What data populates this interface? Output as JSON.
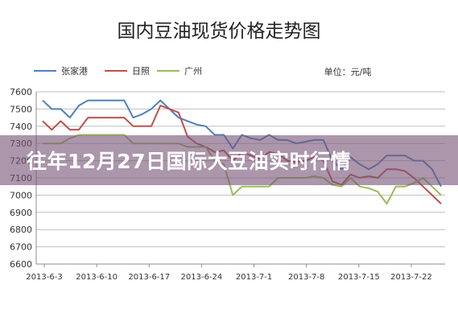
{
  "chart_data": {
    "type": "line",
    "title": "国内豆油现货价格走势图",
    "unit_label": "单位：元/吨",
    "xlabel": "",
    "ylabel": "",
    "ylim": [
      6600,
      7600
    ],
    "y_ticks": [
      6600,
      6700,
      6800,
      6900,
      7000,
      7100,
      7200,
      7300,
      7400,
      7500,
      7600
    ],
    "x_tick_labels": [
      "2013-6-3",
      "2013-6-10",
      "2013-6-17",
      "2013-6-24",
      "2013-7-1",
      "2013-7-8",
      "2013-7-15",
      "2013-7-22"
    ],
    "grid": true,
    "legend_position": "top-left",
    "series": [
      {
        "name": "张家港",
        "color": "#4f81bd",
        "values": [
          7550,
          7500,
          7500,
          7450,
          7520,
          7550,
          7550,
          7550,
          7550,
          7550,
          7450,
          7470,
          7500,
          7550,
          7500,
          7450,
          7430,
          7410,
          7400,
          7350,
          7350,
          7270,
          7350,
          7330,
          7320,
          7350,
          7320,
          7320,
          7300,
          7310,
          7320,
          7320,
          7200,
          7150,
          7220,
          7180,
          7150,
          7180,
          7230,
          7230,
          7230,
          7200,
          7200,
          7150,
          7050
        ]
      },
      {
        "name": "日照",
        "color": "#c0504d",
        "values": [
          7430,
          7380,
          7430,
          7380,
          7380,
          7450,
          7450,
          7450,
          7450,
          7450,
          7400,
          7400,
          7400,
          7520,
          7500,
          7480,
          7340,
          7300,
          7280,
          7250,
          7260,
          7200,
          7250,
          7230,
          7210,
          7250,
          7240,
          7200,
          7190,
          7200,
          7220,
          7200,
          7080,
          7060,
          7120,
          7100,
          7110,
          7100,
          7150,
          7150,
          7140,
          7100,
          7050,
          7000,
          6950
        ]
      },
      {
        "name": "广州",
        "color": "#9bbb59",
        "values": [
          7300,
          7300,
          7300,
          7330,
          7350,
          7350,
          7350,
          7350,
          7350,
          7350,
          7300,
          7300,
          7300,
          7300,
          7300,
          7300,
          7280,
          7280,
          7280,
          7200,
          7180,
          7000,
          7050,
          7050,
          7050,
          7050,
          7100,
          7100,
          7100,
          7100,
          7110,
          7100,
          7060,
          7050,
          7100,
          7050,
          7040,
          7020,
          6950,
          7050,
          7050,
          7070,
          7100,
          7050,
          7000
        ]
      }
    ]
  },
  "overlay": {
    "headline": "往年12月27日国际大豆油实时行情"
  }
}
